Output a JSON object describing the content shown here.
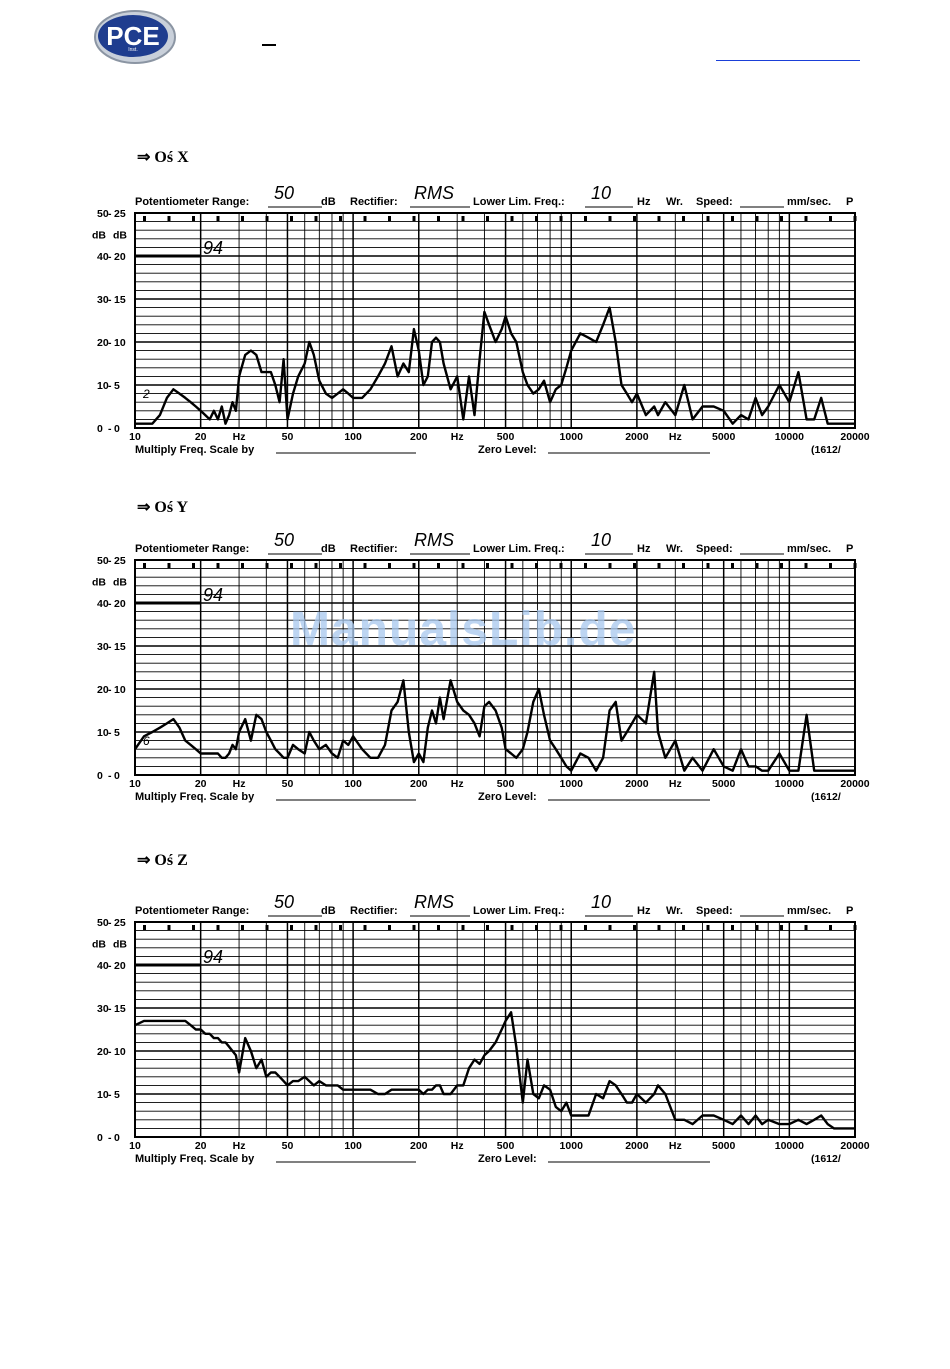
{
  "header": {
    "logo_text": "PCE",
    "logo_subtext": "Inst."
  },
  "watermark": "ManualsLib.de",
  "charts": [
    {
      "section_title": "⇒ Oś X",
      "potentiometer_label": "Potentiometer Range:",
      "potentiometer_value": "50",
      "db_label": "dB",
      "rectifier_label": "Rectifier:",
      "rectifier_value": "RMS",
      "lowlim_label": "Lower Lim. Freq.:",
      "lowlim_value": "10",
      "hz_label": "Hz",
      "wr_label": "Wr.",
      "speed_label": "Speed:",
      "speed_unit": "mm/sec.",
      "trail_char": "P",
      "ref_value": "94",
      "small_mark": "2",
      "multiply_label": "Multiply Freq. Scale by",
      "zero_label": "Zero Level:",
      "code": "(1612/"
    },
    {
      "section_title": "⇒ Oś Y",
      "potentiometer_label": "Potentiometer Range:",
      "potentiometer_value": "50",
      "db_label": "dB",
      "rectifier_label": "Rectifier:",
      "rectifier_value": "RMS",
      "lowlim_label": "Lower Lim. Freq.:",
      "lowlim_value": "10",
      "hz_label": "Hz",
      "wr_label": "Wr.",
      "speed_label": "Speed:",
      "speed_unit": "mm/sec.",
      "trail_char": "P",
      "ref_value": "94",
      "small_mark": "6",
      "multiply_label": "Multiply Freq. Scale by",
      "zero_label": "Zero Level:",
      "code": "(1612/"
    },
    {
      "section_title": "⇒ Oś Z",
      "potentiometer_label": "Potentiometer Range:",
      "potentiometer_value": "50",
      "db_label": "dB",
      "rectifier_label": "Rectifier:",
      "rectifier_value": "RMS",
      "lowlim_label": "Lower Lim. Freq.:",
      "lowlim_value": "10",
      "hz_label": "Hz",
      "wr_label": "Wr.",
      "speed_label": "Speed:",
      "speed_unit": "mm/sec.",
      "trail_char": "P",
      "ref_value": "94",
      "small_mark": "",
      "multiply_label": "Multiply Freq. Scale by",
      "zero_label": "Zero Level:",
      "code": "(1612/"
    }
  ],
  "chart_data": [
    {
      "type": "line",
      "title": "⇒ Oś X",
      "x_scale": "log",
      "xlim": [
        10,
        20000
      ],
      "ylim": [
        0,
        50
      ],
      "x_ticks": [
        "10",
        "20",
        "Hz",
        "50",
        "100",
        "200",
        "Hz",
        "500",
        "1000",
        "2000",
        "Hz",
        "5000",
        "10000",
        "20000"
      ],
      "y_ticks_left": [
        "0",
        "10",
        "20",
        "30",
        "40",
        "50"
      ],
      "y_ticks_right": [
        "0",
        "5",
        "10",
        "15",
        "20",
        "25"
      ],
      "y_unit": "dB",
      "grid": true,
      "series": [
        {
          "x": [
            10,
            11,
            12,
            13,
            14,
            15,
            16,
            17,
            18,
            19,
            20,
            21,
            22,
            23,
            24,
            25,
            26,
            27,
            28,
            29,
            30,
            32,
            34,
            36,
            38,
            40,
            42,
            44,
            46,
            48,
            50,
            53,
            56,
            60,
            63,
            66,
            70,
            75,
            80,
            85,
            90,
            95,
            100,
            110,
            120,
            130,
            140,
            150,
            160,
            170,
            180,
            190,
            200,
            210,
            220,
            230,
            240,
            250,
            260,
            280,
            300,
            320,
            340,
            360,
            380,
            400,
            420,
            450,
            480,
            500,
            530,
            560,
            600,
            630,
            670,
            710,
            750,
            800,
            850,
            900,
            950,
            1000,
            1100,
            1200,
            1300,
            1400,
            1500,
            1600,
            1700,
            1800,
            1900,
            2000,
            2200,
            2400,
            2500,
            2700,
            3000,
            3300,
            3600,
            4000,
            4500,
            5000,
            5500,
            6000,
            6500,
            7000,
            7500,
            8000,
            9000,
            10000,
            11000,
            12000,
            13000,
            14000,
            15000,
            16000,
            17000,
            18000,
            19000,
            20000
          ],
          "y": [
            1,
            1,
            1,
            3,
            7,
            9,
            8,
            7,
            6,
            5,
            4,
            3,
            2,
            4,
            2,
            5,
            1,
            3,
            6,
            4,
            12,
            17,
            18,
            17,
            13,
            13,
            13,
            10,
            6,
            16,
            2,
            8,
            12,
            15,
            20,
            17,
            11,
            8,
            7,
            8,
            9,
            8,
            7,
            7,
            9,
            12,
            15,
            19,
            12,
            15,
            13,
            23,
            18,
            10,
            12,
            20,
            21,
            20,
            15,
            9,
            12,
            2,
            12,
            3,
            16,
            27,
            24,
            20,
            23,
            26,
            22,
            20,
            13,
            10,
            8,
            9,
            11,
            6,
            9,
            10,
            14,
            18,
            22,
            21,
            20,
            24,
            28,
            20,
            10,
            8,
            6,
            8,
            3,
            5,
            3,
            6,
            3,
            10,
            2,
            5,
            5,
            4,
            1,
            3,
            2,
            7,
            3,
            5,
            10,
            6,
            13,
            2,
            2,
            7,
            1,
            1,
            1,
            1,
            1,
            1
          ]
        }
      ]
    },
    {
      "type": "line",
      "title": "⇒ Oś Y",
      "x_scale": "log",
      "xlim": [
        10,
        20000
      ],
      "ylim": [
        0,
        50
      ],
      "x_ticks": [
        "10",
        "20",
        "Hz",
        "50",
        "100",
        "200",
        "Hz",
        "500",
        "1000",
        "2000",
        "Hz",
        "5000",
        "10000",
        "20000"
      ],
      "y_ticks_left": [
        "0",
        "10",
        "20",
        "30",
        "40",
        "50"
      ],
      "y_ticks_right": [
        "0",
        "5",
        "10",
        "15",
        "20",
        "25"
      ],
      "y_unit": "dB",
      "grid": true,
      "series": [
        {
          "x": [
            10,
            11,
            12,
            13,
            14,
            15,
            16,
            17,
            18,
            19,
            20,
            21,
            22,
            23,
            24,
            25,
            26,
            27,
            28,
            29,
            30,
            32,
            34,
            36,
            38,
            40,
            42,
            44,
            46,
            48,
            50,
            53,
            56,
            60,
            63,
            66,
            70,
            75,
            80,
            85,
            90,
            95,
            100,
            110,
            120,
            130,
            140,
            150,
            160,
            170,
            180,
            190,
            200,
            210,
            220,
            230,
            240,
            250,
            260,
            280,
            300,
            320,
            340,
            360,
            380,
            400,
            420,
            450,
            480,
            500,
            530,
            560,
            600,
            630,
            670,
            710,
            750,
            800,
            850,
            900,
            950,
            1000,
            1100,
            1200,
            1300,
            1400,
            1500,
            1600,
            1700,
            1800,
            1900,
            2000,
            2200,
            2400,
            2500,
            2700,
            3000,
            3300,
            3600,
            4000,
            4500,
            5000,
            5500,
            6000,
            6500,
            7000,
            7500,
            8000,
            9000,
            10000,
            11000,
            12000,
            13000,
            14000,
            15000,
            16000,
            17000,
            18000,
            19000,
            20000
          ],
          "y": [
            6,
            9,
            10,
            11,
            12,
            13,
            11,
            8,
            7,
            6,
            5,
            5,
            5,
            5,
            5,
            4,
            4,
            5,
            7,
            6,
            10,
            13,
            8,
            14,
            13,
            10,
            8,
            6,
            5,
            4,
            4,
            7,
            6,
            5,
            10,
            8,
            6,
            7,
            5,
            4,
            8,
            7,
            9,
            6,
            4,
            4,
            7,
            15,
            17,
            22,
            10,
            3,
            5,
            3,
            11,
            15,
            12,
            18,
            13,
            22,
            17,
            15,
            14,
            12,
            9,
            16,
            17,
            15,
            11,
            6,
            5,
            4,
            6,
            10,
            17,
            20,
            14,
            8,
            6,
            4,
            2,
            1,
            5,
            4,
            1,
            4,
            15,
            17,
            8,
            10,
            12,
            14,
            12,
            24,
            10,
            4,
            8,
            1,
            4,
            1,
            6,
            2,
            1,
            6,
            2,
            2,
            1,
            1,
            5,
            1,
            1,
            14,
            1,
            1,
            1,
            1,
            1,
            1,
            1,
            1
          ]
        }
      ]
    },
    {
      "type": "line",
      "title": "⇒ Oś Z",
      "x_scale": "log",
      "xlim": [
        10,
        20000
      ],
      "ylim": [
        0,
        50
      ],
      "x_ticks": [
        "10",
        "20",
        "Hz",
        "50",
        "100",
        "200",
        "Hz",
        "500",
        "1000",
        "2000",
        "Hz",
        "5000",
        "10000",
        "20000"
      ],
      "y_ticks_left": [
        "0",
        "10",
        "20",
        "30",
        "40",
        "50"
      ],
      "y_ticks_right": [
        "0",
        "5",
        "10",
        "15",
        "20",
        "25"
      ],
      "y_unit": "dB",
      "grid": true,
      "series": [
        {
          "x": [
            10,
            11,
            12,
            13,
            14,
            15,
            16,
            17,
            18,
            19,
            20,
            21,
            22,
            23,
            24,
            25,
            26,
            27,
            28,
            29,
            30,
            32,
            34,
            36,
            38,
            40,
            42,
            44,
            46,
            48,
            50,
            53,
            56,
            60,
            63,
            66,
            70,
            75,
            80,
            85,
            90,
            95,
            100,
            110,
            120,
            130,
            140,
            150,
            160,
            170,
            180,
            190,
            200,
            210,
            220,
            230,
            240,
            250,
            260,
            280,
            300,
            320,
            340,
            360,
            380,
            400,
            420,
            450,
            480,
            500,
            530,
            560,
            600,
            630,
            670,
            710,
            750,
            800,
            850,
            900,
            950,
            1000,
            1100,
            1200,
            1300,
            1400,
            1500,
            1600,
            1700,
            1800,
            1900,
            2000,
            2200,
            2400,
            2500,
            2700,
            3000,
            3300,
            3600,
            4000,
            4500,
            5000,
            5500,
            6000,
            6500,
            7000,
            7500,
            8000,
            9000,
            10000,
            11000,
            12000,
            13000,
            14000,
            15000,
            16000,
            17000,
            18000,
            19000,
            20000
          ],
          "y": [
            26,
            27,
            27,
            27,
            27,
            27,
            27,
            27,
            26,
            25,
            25,
            24,
            24,
            23,
            23,
            22,
            22,
            21,
            20,
            19,
            15,
            23,
            20,
            16,
            18,
            14,
            15,
            15,
            14,
            13,
            12,
            13,
            13,
            14,
            13,
            12,
            13,
            12,
            12,
            12,
            11,
            11,
            11,
            11,
            11,
            10,
            10,
            11,
            11,
            11,
            11,
            11,
            11,
            10,
            11,
            11,
            12,
            12,
            10,
            10,
            12,
            12,
            16,
            18,
            17,
            19,
            20,
            22,
            25,
            27,
            29,
            21,
            8,
            18,
            10,
            9,
            12,
            11,
            7,
            6,
            8,
            5,
            5,
            5,
            10,
            9,
            13,
            12,
            10,
            8,
            8,
            10,
            8,
            10,
            12,
            10,
            4,
            4,
            3,
            5,
            5,
            4,
            3,
            5,
            3,
            5,
            3,
            4,
            3,
            3,
            4,
            3,
            4,
            5,
            3,
            2,
            2,
            2,
            2,
            2
          ]
        }
      ]
    }
  ]
}
